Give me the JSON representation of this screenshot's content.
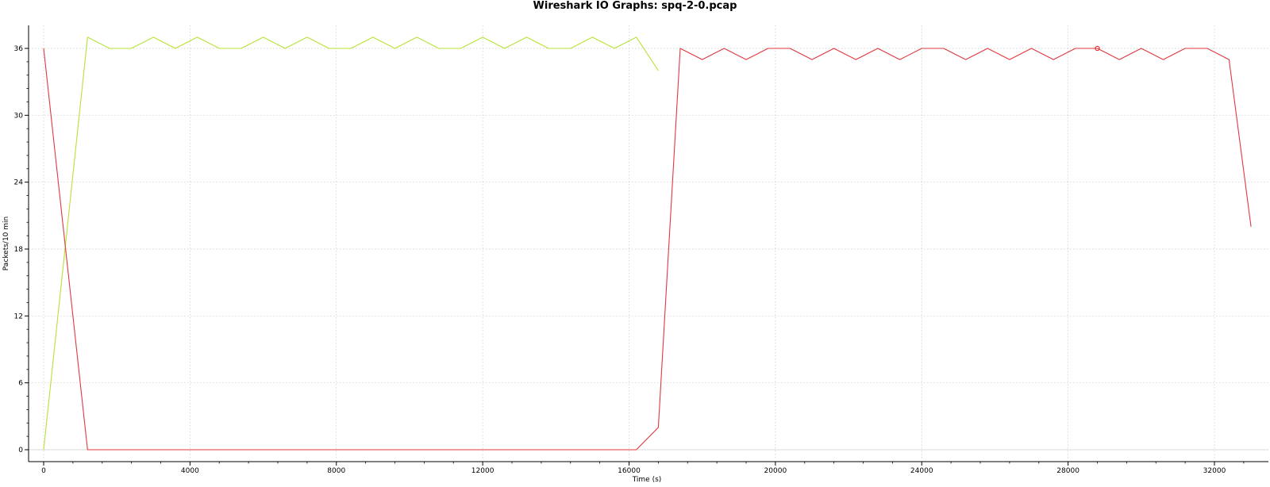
{
  "chart_data": {
    "type": "line",
    "title": "Wireshark IO Graphs: spq-2-0.pcap",
    "xlabel": "Time (s)",
    "ylabel": "Packets/10 min",
    "xlim": [
      0,
      33000
    ],
    "ylim": [
      -1,
      38
    ],
    "xticks": [
      0,
      4000,
      8000,
      12000,
      16000,
      20000,
      24000,
      28000,
      32000
    ],
    "yticks": [
      0,
      6,
      12,
      18,
      24,
      30,
      36
    ],
    "grid": true,
    "colors": {
      "series_green": "#b6e335",
      "series_red": "#e0383d",
      "grid": "#c8c8c8",
      "axis": "#000000"
    },
    "series": [
      {
        "color": "#b6e335",
        "x": [
          0,
          1200,
          1800,
          2400,
          3000,
          3600,
          4200,
          4800,
          5400,
          6000,
          6600,
          7200,
          7800,
          8400,
          9000,
          9600,
          10200,
          10800,
          11400,
          12000,
          12600,
          13200,
          13800,
          14400,
          15000,
          15600,
          16200,
          16800
        ],
        "y": [
          0,
          37,
          36,
          36,
          37,
          36,
          37,
          36,
          36,
          37,
          36,
          37,
          36,
          36,
          37,
          36,
          37,
          36,
          36,
          37,
          36,
          37,
          36,
          36,
          37,
          36,
          37,
          34
        ]
      },
      {
        "color": "#e0383d",
        "x": [
          0,
          1200,
          1800,
          2400,
          3000,
          3600,
          4200,
          4800,
          5400,
          6000,
          6600,
          7200,
          7800,
          8400,
          9000,
          9600,
          10200,
          10800,
          11400,
          12000,
          12600,
          13200,
          13800,
          14400,
          15000,
          15600,
          16200,
          16800,
          17400,
          18000,
          18600,
          19200,
          19800,
          20400,
          21000,
          21600,
          22200,
          22800,
          23400,
          24000,
          24600,
          25200,
          25800,
          26400,
          27000,
          27600,
          28200,
          28800,
          29400,
          30000,
          30600,
          31200,
          31800,
          32400,
          33000
        ],
        "y": [
          36,
          0,
          0,
          0,
          0,
          0,
          0,
          0,
          0,
          0,
          0,
          0,
          0,
          0,
          0,
          0,
          0,
          0,
          0,
          0,
          0,
          0,
          0,
          0,
          0,
          0,
          0,
          2,
          36,
          35,
          36,
          35,
          36,
          36,
          35,
          36,
          35,
          36,
          35,
          36,
          36,
          35,
          36,
          35,
          36,
          35,
          36,
          36,
          35,
          36,
          35,
          36,
          36,
          35,
          20
        ]
      }
    ],
    "marker": {
      "x": 28800,
      "y": 36,
      "color": "#e0383d"
    }
  }
}
